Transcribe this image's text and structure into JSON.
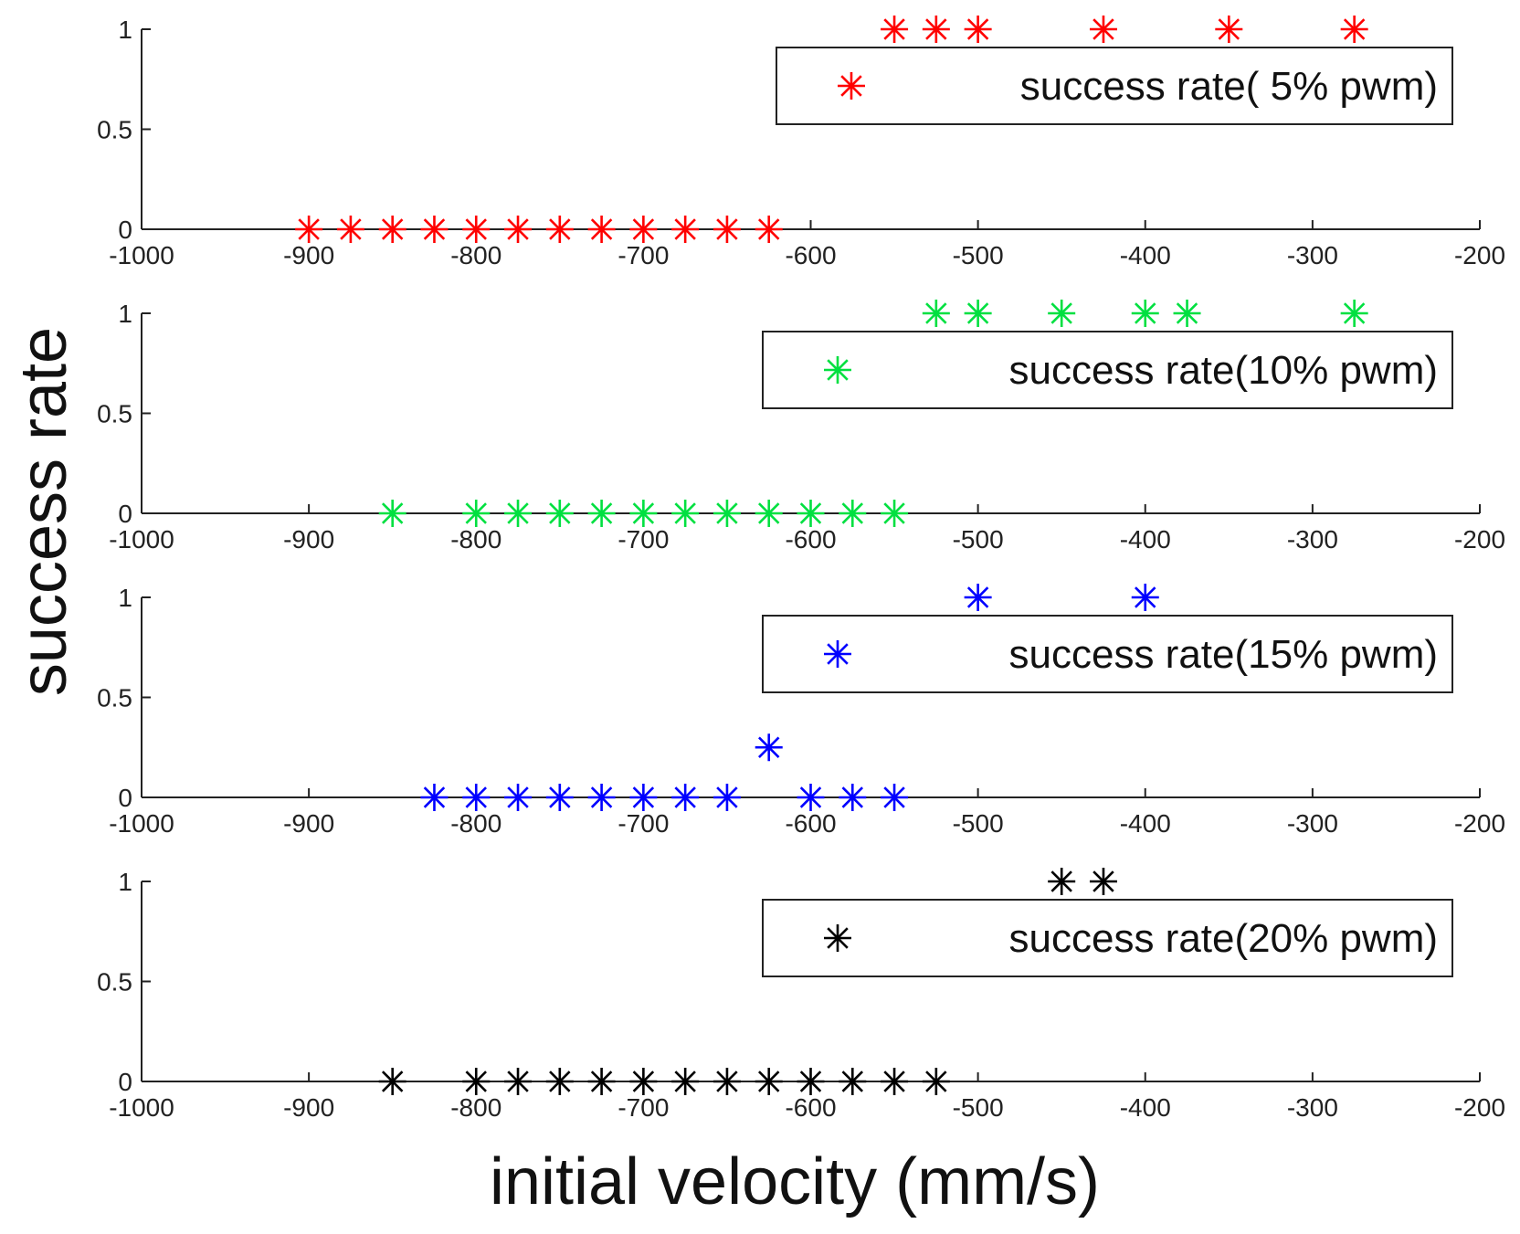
{
  "figure": {
    "ylabel": "success rate",
    "xlabel": "initial velocity (mm/s)"
  },
  "chart_data": [
    {
      "type": "scatter",
      "series": [
        {
          "name": "success rate( 5% pwm)",
          "color": "#ff0000",
          "marker": "asterisk",
          "x": [
            -900,
            -875,
            -850,
            -825,
            -800,
            -775,
            -750,
            -725,
            -700,
            -675,
            -650,
            -625,
            -550,
            -525,
            -500,
            -425,
            -350,
            -275
          ],
          "y": [
            0,
            0,
            0,
            0,
            0,
            0,
            0,
            0,
            0,
            0,
            0,
            0,
            1,
            1,
            1,
            1,
            1,
            1
          ]
        }
      ],
      "xlim": [
        -1000,
        -200
      ],
      "ylim": [
        0,
        1
      ],
      "xticks": [
        "-1000",
        "-900",
        "-800",
        "-700",
        "-600",
        "-500",
        "-400",
        "-300",
        "-200"
      ],
      "yticks": [
        "0",
        "0.5",
        "1"
      ],
      "legend": "top-right",
      "grid": false
    },
    {
      "type": "scatter",
      "series": [
        {
          "name": "success rate(10% pwm)",
          "color": "#00e040",
          "marker": "asterisk",
          "x": [
            -850,
            -800,
            -775,
            -750,
            -725,
            -700,
            -675,
            -650,
            -625,
            -600,
            -575,
            -550,
            -525,
            -500,
            -450,
            -400,
            -375,
            -275
          ],
          "y": [
            0,
            0,
            0,
            0,
            0,
            0,
            0,
            0,
            0,
            0,
            0,
            0,
            1,
            1,
            1,
            1,
            1,
            1
          ]
        }
      ],
      "xlim": [
        -1000,
        -200
      ],
      "ylim": [
        0,
        1
      ],
      "xticks": [
        "-1000",
        "-900",
        "-800",
        "-700",
        "-600",
        "-500",
        "-400",
        "-300",
        "-200"
      ],
      "yticks": [
        "0",
        "0.5",
        "1"
      ],
      "legend": "top-right",
      "grid": false
    },
    {
      "type": "scatter",
      "series": [
        {
          "name": "success rate(15% pwm)",
          "color": "#0000ff",
          "marker": "asterisk",
          "x": [
            -825,
            -800,
            -775,
            -750,
            -725,
            -700,
            -675,
            -650,
            -625,
            -600,
            -575,
            -550,
            -500,
            -400
          ],
          "y": [
            0,
            0,
            0,
            0,
            0,
            0,
            0,
            0,
            0.25,
            0,
            0,
            0,
            1,
            1
          ]
        }
      ],
      "xlim": [
        -1000,
        -200
      ],
      "ylim": [
        0,
        1
      ],
      "xticks": [
        "-1000",
        "-900",
        "-800",
        "-700",
        "-600",
        "-500",
        "-400",
        "-300",
        "-200"
      ],
      "yticks": [
        "0",
        "0.5",
        "1"
      ],
      "legend": "top-right",
      "grid": false
    },
    {
      "type": "scatter",
      "series": [
        {
          "name": "success rate(20% pwm)",
          "color": "#000000",
          "marker": "asterisk",
          "x": [
            -850,
            -800,
            -775,
            -750,
            -725,
            -700,
            -675,
            -650,
            -625,
            -600,
            -575,
            -550,
            -525,
            -450,
            -425
          ],
          "y": [
            0,
            0,
            0,
            0,
            0,
            0,
            0,
            0,
            0,
            0,
            0,
            0,
            0,
            1,
            1
          ]
        }
      ],
      "xlim": [
        -1000,
        -200
      ],
      "ylim": [
        0,
        1
      ],
      "xticks": [
        "-1000",
        "-900",
        "-800",
        "-700",
        "-600",
        "-500",
        "-400",
        "-300",
        "-200"
      ],
      "yticks": [
        "0",
        "0.5",
        "1"
      ],
      "legend": "top-right",
      "grid": false
    }
  ]
}
